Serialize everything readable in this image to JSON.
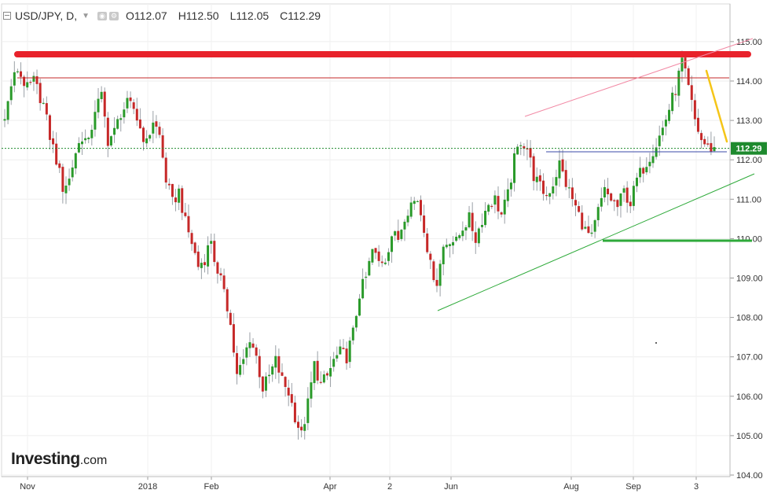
{
  "header": {
    "symbol": "USD/JPY, D,",
    "open": "O112.07",
    "high": "H112.50",
    "low": "L112.05",
    "close": "C112.29"
  },
  "logo": {
    "brand": "Investing",
    "suffix": ".com"
  },
  "colors": {
    "up": "#2a9a2a",
    "down": "#c62828",
    "resistance": "#e8222b",
    "support": "#2eaa3a",
    "trend": "#f5c518",
    "price": "#1e8a2e"
  },
  "chart_data": {
    "type": "candlestick",
    "title": "",
    "xlabel": "",
    "ylabel": "",
    "ylim": [
      104,
      115.4
    ],
    "y_ticks": [
      "115.00",
      "114.00",
      "113.00",
      "112.00",
      "111.00",
      "110.00",
      "109.00",
      "108.00",
      "107.00",
      "106.00",
      "105.00",
      "104.00"
    ],
    "x_ticks": [
      "Nov",
      "2018",
      "Feb",
      "Apr",
      "2",
      "Jun",
      "Aug",
      "Sep",
      "3"
    ],
    "last_price_label": "112.29",
    "last_price": 112.29,
    "grid": true,
    "price_path": [
      [
        0,
        113.0
      ],
      [
        2,
        113.9
      ],
      [
        4,
        114.3
      ],
      [
        7,
        113.8
      ],
      [
        9,
        114.0
      ],
      [
        12,
        113.4
      ],
      [
        14,
        112.6
      ],
      [
        16,
        112.0
      ],
      [
        18,
        111.3
      ],
      [
        20,
        111.5
      ],
      [
        22,
        112.2
      ],
      [
        24,
        112.6
      ],
      [
        26,
        112.4
      ],
      [
        28,
        113.3
      ],
      [
        30,
        113.6
      ],
      [
        32,
        112.5
      ],
      [
        34,
        112.7
      ],
      [
        36,
        113.2
      ],
      [
        38,
        113.4
      ],
      [
        40,
        113.3
      ],
      [
        42,
        112.8
      ],
      [
        44,
        112.4
      ],
      [
        46,
        113.0
      ],
      [
        48,
        112.6
      ],
      [
        50,
        111.5
      ],
      [
        52,
        110.9
      ],
      [
        54,
        111.2
      ],
      [
        56,
        110.4
      ],
      [
        58,
        109.9
      ],
      [
        60,
        109.3
      ],
      [
        62,
        109.5
      ],
      [
        64,
        110.0
      ],
      [
        66,
        109.0
      ],
      [
        68,
        108.8
      ],
      [
        70,
        107.8
      ],
      [
        72,
        106.5
      ],
      [
        74,
        106.9
      ],
      [
        76,
        107.5
      ],
      [
        78,
        107.0
      ],
      [
        80,
        106.2
      ],
      [
        82,
        106.5
      ],
      [
        84,
        106.9
      ],
      [
        86,
        106.4
      ],
      [
        88,
        106.1
      ],
      [
        90,
        105.5
      ],
      [
        92,
        105.0
      ],
      [
        94,
        105.8
      ],
      [
        96,
        106.8
      ],
      [
        98,
        106.3
      ],
      [
        100,
        106.5
      ],
      [
        102,
        106.9
      ],
      [
        104,
        107.1
      ],
      [
        106,
        107.0
      ],
      [
        108,
        107.6
      ],
      [
        110,
        108.6
      ],
      [
        112,
        109.0
      ],
      [
        114,
        109.7
      ],
      [
        116,
        109.4
      ],
      [
        118,
        109.5
      ],
      [
        120,
        110.1
      ],
      [
        122,
        110.0
      ],
      [
        124,
        110.6
      ],
      [
        126,
        110.9
      ],
      [
        128,
        111.0
      ],
      [
        130,
        110.3
      ],
      [
        132,
        109.3
      ],
      [
        134,
        108.9
      ],
      [
        136,
        109.8
      ],
      [
        138,
        110.0
      ],
      [
        140,
        109.9
      ],
      [
        142,
        110.3
      ],
      [
        144,
        110.5
      ],
      [
        146,
        110.0
      ],
      [
        148,
        110.5
      ],
      [
        150,
        110.9
      ],
      [
        152,
        111.0
      ],
      [
        154,
        110.6
      ],
      [
        156,
        111.1
      ],
      [
        158,
        112.0
      ],
      [
        160,
        112.5
      ],
      [
        162,
        112.3
      ],
      [
        164,
        111.6
      ],
      [
        166,
        111.3
      ],
      [
        168,
        111.1
      ],
      [
        170,
        111.4
      ],
      [
        172,
        111.9
      ],
      [
        174,
        111.4
      ],
      [
        176,
        111.0
      ],
      [
        178,
        110.6
      ],
      [
        180,
        110.2
      ],
      [
        182,
        110.0
      ],
      [
        184,
        110.7
      ],
      [
        186,
        111.2
      ],
      [
        188,
        111.0
      ],
      [
        190,
        110.8
      ],
      [
        192,
        111.2
      ],
      [
        194,
        110.9
      ],
      [
        196,
        111.5
      ],
      [
        198,
        111.8
      ],
      [
        200,
        112.1
      ],
      [
        202,
        112.4
      ],
      [
        204,
        112.8
      ],
      [
        206,
        113.3
      ],
      [
        208,
        113.8
      ],
      [
        210,
        114.5
      ],
      [
        212,
        113.8
      ],
      [
        214,
        113.0
      ],
      [
        216,
        112.5
      ],
      [
        218,
        112.3
      ],
      [
        220,
        112.29
      ]
    ]
  }
}
